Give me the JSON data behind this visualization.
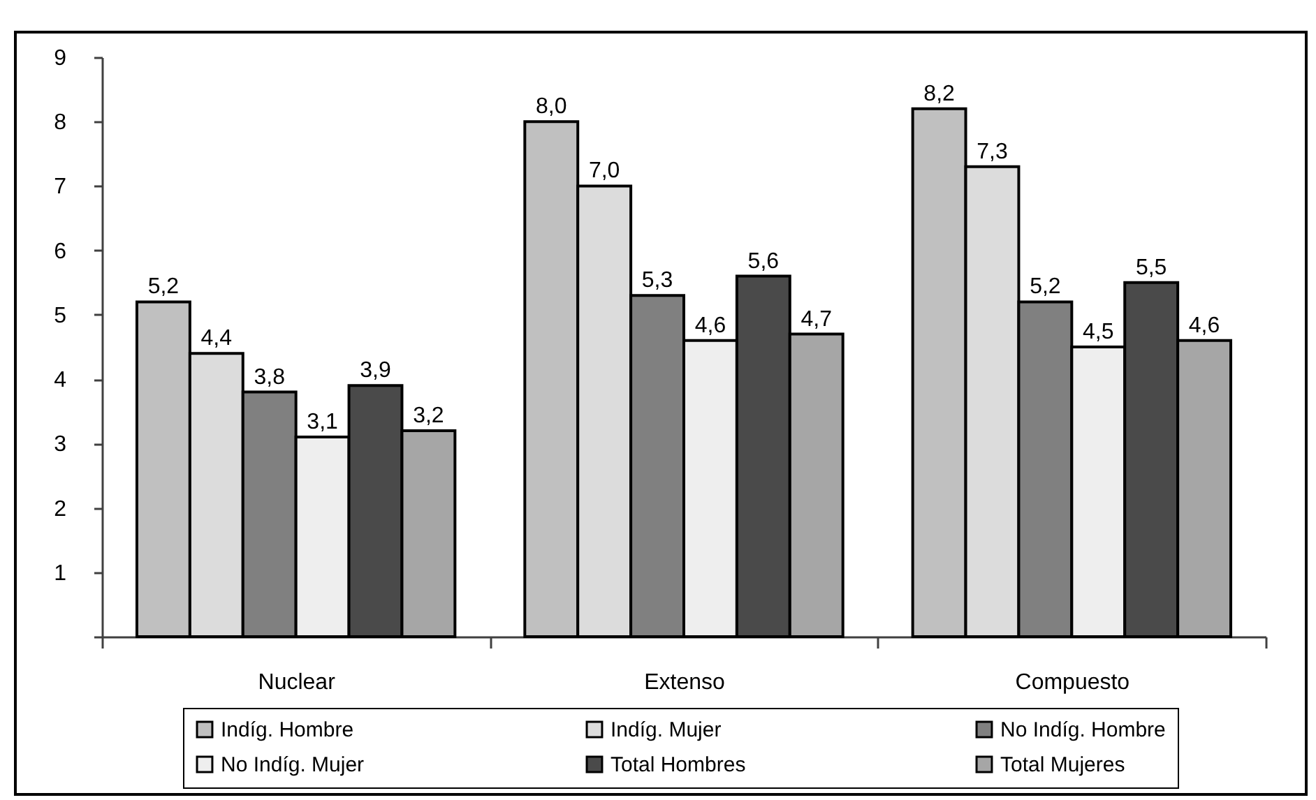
{
  "chart_data": {
    "type": "bar",
    "categories": [
      "Nuclear",
      "Extenso",
      "Compuesto"
    ],
    "series": [
      {
        "name": "Indíg. Hombre",
        "color": "#c0c0c0",
        "values": [
          5.2,
          8.0,
          8.2
        ],
        "value_labels": [
          "5,2",
          "8,0",
          "8,2"
        ]
      },
      {
        "name": "Indíg. Mujer",
        "color": "#dcdcdc",
        "values": [
          4.4,
          7.0,
          7.3
        ],
        "value_labels": [
          "4,4",
          "7,0",
          "7,3"
        ]
      },
      {
        "name": "No Indíg. Hombre",
        "color": "#808080",
        "values": [
          3.8,
          5.3,
          5.2
        ],
        "value_labels": [
          "3,8",
          "5,3",
          "5,2"
        ]
      },
      {
        "name": "No Indíg. Mujer",
        "color": "#eeeeee",
        "values": [
          3.1,
          4.6,
          4.5
        ],
        "value_labels": [
          "3,1",
          "4,6",
          "4,5"
        ]
      },
      {
        "name": "Total Hombres",
        "color": "#4a4a4a",
        "values": [
          3.9,
          5.6,
          5.5
        ],
        "value_labels": [
          "3,9",
          "5,6",
          "5,5"
        ]
      },
      {
        "name": "Total Mujeres",
        "color": "#a6a6a6",
        "values": [
          3.2,
          4.7,
          4.6
        ],
        "value_labels": [
          "3,2",
          "4,7",
          "4,6"
        ]
      }
    ],
    "ylim": [
      0,
      9
    ],
    "yticks": [
      {
        "value": 0,
        "label": null
      },
      1,
      2,
      3,
      4,
      5,
      6,
      7,
      8,
      9
    ],
    "grid": false,
    "legend": "bottom"
  }
}
